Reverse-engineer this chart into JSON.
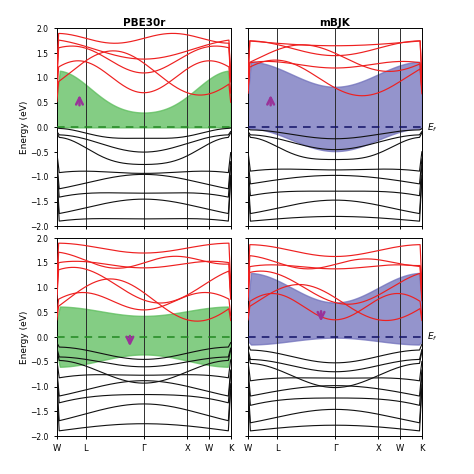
{
  "titles_top": [
    "PBE30r",
    "mBJK"
  ],
  "ylim": [
    -2.0,
    2.0
  ],
  "yticks": [
    -2.0,
    -1.5,
    -1.0,
    -0.5,
    0.0,
    0.5,
    1.0,
    1.5,
    2.0
  ],
  "xtick_labels": [
    "W",
    "L",
    "Γ",
    "X",
    "W",
    "K"
  ],
  "green_fill_color": "#5BBD5B",
  "blue_fill_color": "#7070BB",
  "green_fill_alpha": 0.75,
  "blue_fill_alpha": 0.75,
  "arrow_color": "#993399",
  "band_color_red": "#EE2020",
  "band_color_black": "#111111",
  "green_dashed_color": "#228822",
  "blue_dashed_color": "#111166",
  "vline_color": "#222222",
  "n_kpoints": 300,
  "kpoint_positions": [
    0.0,
    0.167,
    0.5,
    0.75,
    0.875,
    1.0
  ]
}
